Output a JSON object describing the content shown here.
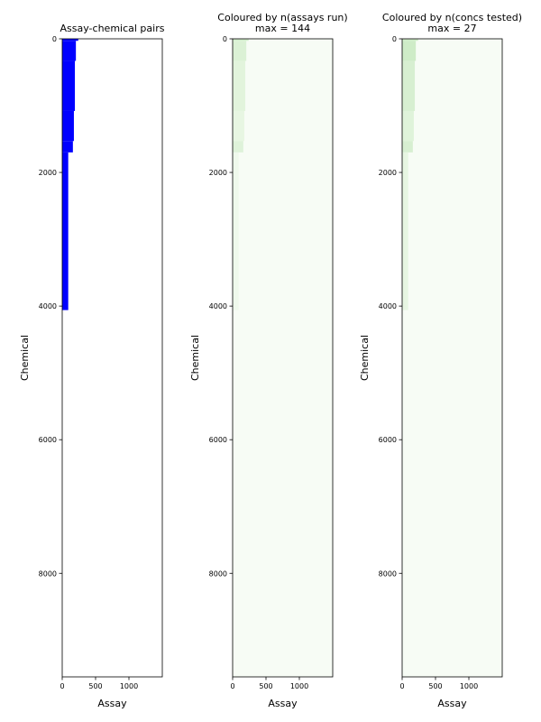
{
  "chart_data": [
    {
      "type": "heatmap",
      "title_lines": [
        "Assay-chemical pairs"
      ],
      "xlabel": "Assay",
      "ylabel": "Chemical",
      "xlim": [
        0,
        1500
      ],
      "ylim": [
        9550,
        0
      ],
      "xticks": [
        0,
        500,
        1000
      ],
      "yticks": [
        0,
        2000,
        4000,
        6000,
        8000
      ],
      "colormap": "presence",
      "fill_color": "#0000ff",
      "background": "#ffffff",
      "cells": [
        {
          "x0": 0,
          "x1": 240,
          "y0": 0,
          "y1": 30,
          "v": 1
        },
        {
          "x0": 0,
          "x1": 205,
          "y0": 30,
          "y1": 330,
          "v": 1
        },
        {
          "x0": 0,
          "x1": 190,
          "y0": 330,
          "y1": 1080,
          "v": 1
        },
        {
          "x0": 0,
          "x1": 175,
          "y0": 1080,
          "y1": 1530,
          "v": 1
        },
        {
          "x0": 0,
          "x1": 160,
          "y0": 1530,
          "y1": 1700,
          "v": 1
        },
        {
          "x0": 0,
          "x1": 90,
          "y0": 1700,
          "y1": 4060,
          "v": 1
        }
      ]
    },
    {
      "type": "heatmap",
      "title_lines": [
        "Coloured by n(assays run)",
        "max = 144"
      ],
      "xlabel": "Assay",
      "ylabel": "Chemical",
      "xlim": [
        0,
        1500
      ],
      "ylim": [
        9550,
        0
      ],
      "xticks": [
        0,
        500,
        1000
      ],
      "yticks": [
        0,
        2000,
        4000,
        6000,
        8000
      ],
      "colormap": "Greens",
      "vmin": 0,
      "vmax": 144,
      "cells": [
        {
          "x0": 0,
          "x1": 240,
          "y0": 0,
          "y1": 30,
          "v": 30
        },
        {
          "x0": 0,
          "x1": 205,
          "y0": 30,
          "y1": 330,
          "v": 24
        },
        {
          "x0": 0,
          "x1": 190,
          "y0": 330,
          "y1": 1080,
          "v": 20
        },
        {
          "x0": 0,
          "x1": 175,
          "y0": 1080,
          "y1": 1530,
          "v": 16
        },
        {
          "x0": 0,
          "x1": 160,
          "y0": 1530,
          "y1": 1700,
          "v": 22
        },
        {
          "x0": 0,
          "x1": 90,
          "y0": 1700,
          "y1": 4060,
          "v": 8
        }
      ]
    },
    {
      "type": "heatmap",
      "title_lines": [
        "Coloured by n(concs tested)",
        "max = 27"
      ],
      "xlabel": "Assay",
      "ylabel": "Chemical",
      "xlim": [
        0,
        1500
      ],
      "ylim": [
        9550,
        0
      ],
      "xticks": [
        0,
        500,
        1000
      ],
      "yticks": [
        0,
        2000,
        4000,
        6000,
        8000
      ],
      "colormap": "Greens",
      "vmin": 0,
      "vmax": 27,
      "cells": [
        {
          "x0": 0,
          "x1": 240,
          "y0": 0,
          "y1": 30,
          "v": 6
        },
        {
          "x0": 0,
          "x1": 205,
          "y0": 30,
          "y1": 330,
          "v": 6
        },
        {
          "x0": 0,
          "x1": 190,
          "y0": 330,
          "y1": 1080,
          "v": 5
        },
        {
          "x0": 0,
          "x1": 175,
          "y0": 1080,
          "y1": 1530,
          "v": 4
        },
        {
          "x0": 0,
          "x1": 160,
          "y0": 1530,
          "y1": 1700,
          "v": 5
        },
        {
          "x0": 0,
          "x1": 90,
          "y0": 1700,
          "y1": 4060,
          "v": 3
        }
      ]
    }
  ]
}
